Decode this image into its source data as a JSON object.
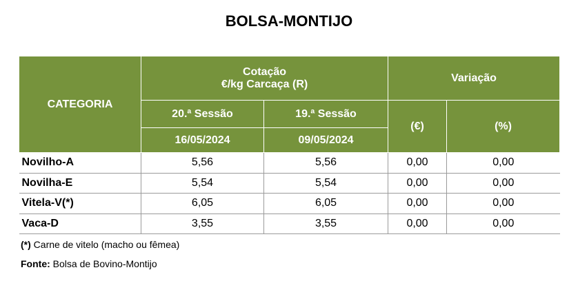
{
  "title": "BOLSA-MONTIJO",
  "table": {
    "header": {
      "category": "CATEGORIA",
      "quote": [
        "Cotação",
        "€/kg Carcaça (R)"
      ],
      "sessions": [
        {
          "name": "20.ª Sessão",
          "date": "16/05/2024"
        },
        {
          "name": "19.ª Sessão",
          "date": "09/05/2024"
        }
      ],
      "variation": "Variação",
      "variation_units": [
        "(€)",
        "(%)"
      ]
    },
    "rows": [
      [
        "Novilho-A",
        "5,56",
        "5,56",
        "0,00",
        "0,00"
      ],
      [
        "Novilha-E",
        "5,54",
        "5,54",
        "0,00",
        "0,00"
      ],
      [
        "Vitela-V(*)",
        "6,05",
        "6,05",
        "0,00",
        "0,00"
      ],
      [
        "Vaca-D",
        "3,55",
        "3,55",
        "0,00",
        "0,00"
      ]
    ]
  },
  "footnote": {
    "mark": "(*)",
    "text": "Carne de vitelo (macho ou fêmea)"
  },
  "source": {
    "label": "Fonte:",
    "text": "Bolsa de Bovino-Montijo"
  }
}
